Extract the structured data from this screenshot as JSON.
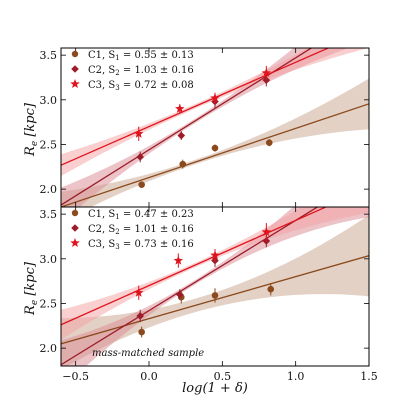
{
  "chart_data": [
    {
      "type": "scatter",
      "title": "",
      "xlabel": "",
      "ylabel": "R_e [kpc]",
      "xlim": [
        -0.6,
        1.5
      ],
      "ylim": [
        1.8,
        3.58
      ],
      "yticks": [
        "2.0",
        "2.5",
        "3.0",
        "3.5"
      ],
      "legend_position": "top-left",
      "annotation": "",
      "series": [
        {
          "name": "C1",
          "slope_label": "S",
          "slope_index": "1",
          "slope_value": "= 0.55 ± 0.13",
          "marker": "circle",
          "color": "#8B4A1E",
          "band_color": "#c9a48c",
          "x": [
            -0.05,
            0.23,
            0.45,
            0.82
          ],
          "y": [
            2.05,
            2.28,
            2.46,
            2.52
          ],
          "yerr": [
            0.03,
            0.05,
            0.04,
            0.04
          ],
          "fit": {
            "slope": 0.55,
            "intercept": 2.13
          }
        },
        {
          "name": "C2",
          "slope_label": "S",
          "slope_index": "2",
          "slope_value": "= 1.03 ± 0.16",
          "marker": "diamond",
          "color": "#9C1C2A",
          "band_color": "#d98a92",
          "x": [
            -0.06,
            0.22,
            0.45,
            0.8
          ],
          "y": [
            2.36,
            2.6,
            2.98,
            3.22
          ],
          "yerr": [
            0.06,
            0.05,
            0.07,
            0.07
          ],
          "fit": {
            "slope": 1.03,
            "intercept": 2.44
          }
        },
        {
          "name": "C3",
          "slope_label": "S",
          "slope_index": "3",
          "slope_value": "= 0.72 ± 0.08",
          "marker": "star",
          "color": "#E0141E",
          "band_color": "#f3a0a2",
          "x": [
            -0.07,
            0.21,
            0.45,
            0.8
          ],
          "y": [
            2.62,
            2.9,
            3.02,
            3.3
          ],
          "yerr": [
            0.08,
            0.05,
            0.06,
            0.08
          ],
          "fit": {
            "slope": 0.72,
            "intercept": 2.7
          }
        }
      ]
    },
    {
      "type": "scatter",
      "title": "",
      "xlabel": "log(1 + δ)",
      "ylabel": "R_e [kpc]",
      "xlim": [
        -0.6,
        1.5
      ],
      "ylim": [
        1.8,
        3.58
      ],
      "xticks": [
        "−0.5",
        "0.0",
        "0.5",
        "1.0",
        "1.5"
      ],
      "yticks": [
        "2.0",
        "2.5",
        "3.0",
        "3.5"
      ],
      "legend_position": "top-left",
      "annotation": "mass-matched sample",
      "series": [
        {
          "name": "C1",
          "slope_label": "S",
          "slope_index": "1",
          "slope_value": "= 0.47 ± 0.23",
          "marker": "circle",
          "color": "#8B4A1E",
          "band_color": "#c9a48c",
          "x": [
            -0.05,
            0.22,
            0.45,
            0.83
          ],
          "y": [
            2.18,
            2.57,
            2.59,
            2.66
          ],
          "yerr": [
            0.06,
            0.07,
            0.08,
            0.07
          ],
          "fit": {
            "slope": 0.47,
            "intercept": 2.33
          }
        },
        {
          "name": "C2",
          "slope_label": "S",
          "slope_index": "2",
          "slope_value": "= 1.01 ± 0.16",
          "marker": "diamond",
          "color": "#9C1C2A",
          "band_color": "#d98a92",
          "x": [
            -0.06,
            0.21,
            0.45,
            0.8
          ],
          "y": [
            2.36,
            2.6,
            2.98,
            3.2
          ],
          "yerr": [
            0.07,
            0.06,
            0.07,
            0.07
          ],
          "fit": {
            "slope": 1.01,
            "intercept": 2.42
          }
        },
        {
          "name": "C3",
          "slope_label": "S",
          "slope_index": "3",
          "slope_value": "= 0.73 ± 0.16",
          "marker": "star",
          "color": "#E0141E",
          "band_color": "#f3a0a2",
          "x": [
            -0.07,
            0.2,
            0.45,
            0.8
          ],
          "y": [
            2.62,
            2.98,
            3.04,
            3.3
          ],
          "yerr": [
            0.08,
            0.08,
            0.07,
            0.1
          ],
          "fit": {
            "slope": 0.73,
            "intercept": 2.7
          }
        }
      ]
    }
  ]
}
